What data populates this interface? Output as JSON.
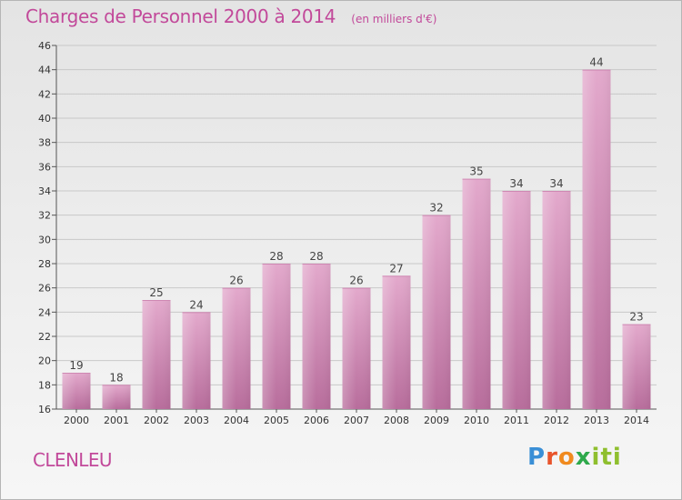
{
  "header": {
    "title": "Charges de Personnel 2000 à 2014",
    "subtitle": "(en milliers d'€)"
  },
  "footer": {
    "commune": "CLENLEU",
    "logo_text": "Proxiti"
  },
  "colors": {
    "title": "#c2499a",
    "bar_top": "#e3a9cc",
    "bar_bottom": "#b86d9c",
    "grid": "#c8c8c8"
  },
  "chart_data": {
    "type": "bar",
    "title": "Charges de Personnel 2000 à 2014",
    "subtitle": "(en milliers d'€)",
    "categories": [
      "2000",
      "2001",
      "2002",
      "2003",
      "2004",
      "2005",
      "2006",
      "2007",
      "2008",
      "2009",
      "2010",
      "2011",
      "2012",
      "2013",
      "2014"
    ],
    "values": [
      19,
      18,
      25,
      24,
      26,
      28,
      28,
      26,
      27,
      32,
      35,
      34,
      34,
      44,
      23
    ],
    "ylim": [
      16,
      46
    ],
    "yticks": [
      16,
      18,
      20,
      22,
      24,
      26,
      28,
      30,
      32,
      34,
      36,
      38,
      40,
      42,
      44,
      46
    ],
    "grid": true,
    "data_labels": true
  }
}
